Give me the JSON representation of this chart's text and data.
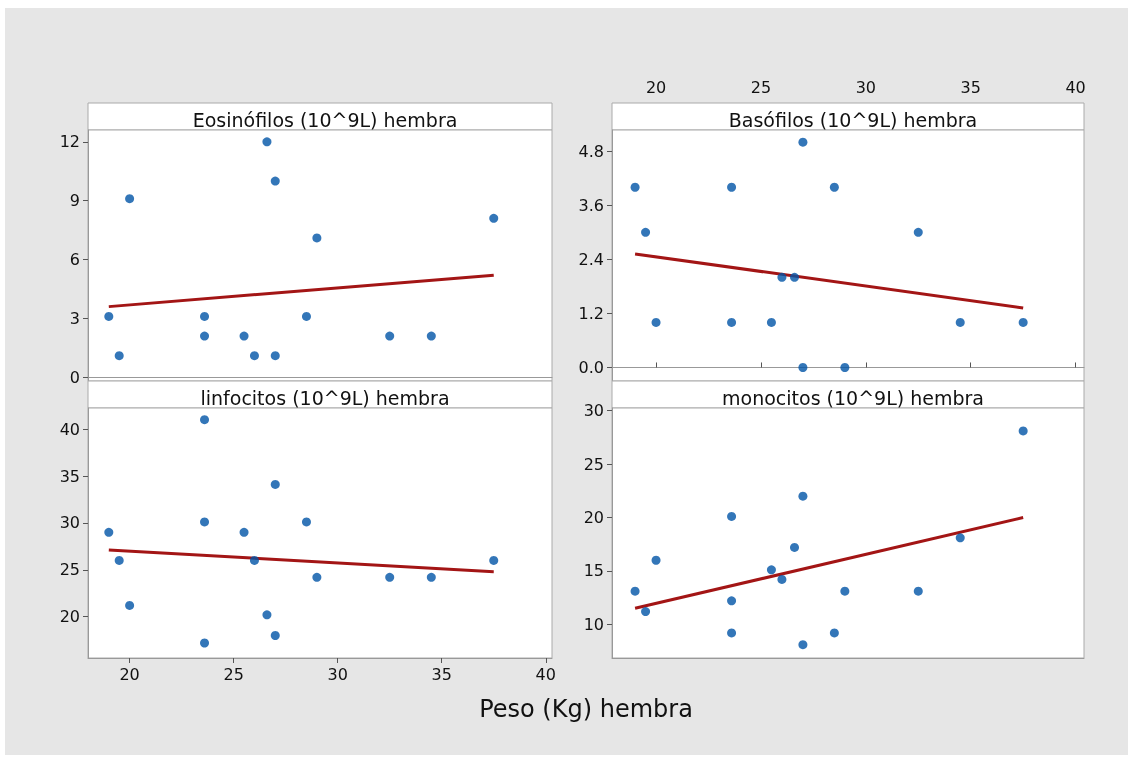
{
  "chart_data": [
    {
      "type": "scatter",
      "title": "Eosinófilos (10^9L) hembra",
      "xlim": [
        18,
        40.3
      ],
      "ylim": [
        -0.19,
        12.6
      ],
      "yticks": [
        0,
        3,
        6,
        9,
        12
      ],
      "tick_labels": "y",
      "marker": "circle",
      "series": [
        {
          "color": "#0054a6",
          "x": [
            19,
            19.5,
            20,
            23.6,
            23.6,
            25.5,
            26,
            26.6,
            27,
            27,
            28.5,
            29,
            32.5,
            34.5,
            37.5
          ],
          "values": [
            3.1,
            1.1,
            9.1,
            3.1,
            2.1,
            2.1,
            1.1,
            12,
            10,
            1.1,
            3.1,
            7.1,
            2.1,
            2.1,
            8.1
          ]
        },
        {
          "type": "line",
          "marker": "none",
          "color": "#a31515",
          "x": [
            19,
            37.5
          ],
          "values": [
            3.6,
            5.2
          ]
        }
      ]
    },
    {
      "type": "scatter",
      "title": "Basófilos (10^9L) hembra",
      "xlim": [
        17.9,
        40.4
      ],
      "xticks": [
        20,
        25,
        30,
        35,
        40
      ],
      "ylim": [
        -0.3,
        5.27
      ],
      "yticks": [
        {
          "value": 0,
          "label": "0.0"
        },
        1.2,
        2.4,
        3.6,
        4.8
      ],
      "marker": "circle",
      "series": [
        {
          "color": "#0054a6",
          "x": [
            19,
            19.5,
            20,
            23.6,
            23.6,
            25.5,
            26,
            26.6,
            27,
            27,
            28.5,
            29,
            32.5,
            34.5,
            37.5
          ],
          "values": [
            4,
            3,
            1,
            4,
            1,
            1,
            2,
            2,
            5,
            0,
            4,
            0,
            3,
            1,
            1
          ]
        },
        {
          "type": "line",
          "marker": "none",
          "color": "#a31515",
          "x": [
            19,
            37.5
          ],
          "values": [
            2.52,
            1.32
          ]
        }
      ]
    },
    {
      "type": "scatter",
      "title": "linfocitos (10^9L) hembra",
      "xlabel": "Peso (Kg) hembra",
      "xlim": [
        18,
        40.3
      ],
      "xticks": [
        20,
        25,
        30,
        35,
        40
      ],
      "ylim": [
        15.6,
        42.25
      ],
      "yticks": [
        20,
        25,
        30,
        35,
        40
      ],
      "marker": "circle",
      "series": [
        {
          "color": "#0054a6",
          "x": [
            19,
            19.5,
            20,
            23.6,
            23.6,
            23.6,
            25.5,
            26,
            26.6,
            27,
            27,
            28.5,
            29,
            32.5,
            34.5,
            37.5
          ],
          "values": [
            29,
            26,
            21.2,
            41,
            30.1,
            17.2,
            29,
            26,
            20.2,
            34.1,
            18,
            30.1,
            24.2,
            24.2,
            24.2,
            26
          ]
        },
        {
          "type": "line",
          "marker": "none",
          "color": "#a31515",
          "x": [
            19,
            37.5
          ],
          "values": [
            27.1,
            24.8
          ]
        }
      ]
    },
    {
      "type": "scatter",
      "title": "monocitos (10^9L) hembra",
      "xlim": [
        17.9,
        40.4
      ],
      "ylim": [
        6.85,
        30.25
      ],
      "yticks": [
        10,
        15,
        20,
        25,
        30
      ],
      "tick_labels": "y",
      "marker": "circle",
      "series": [
        {
          "color": "#0054a6",
          "x": [
            19,
            19.5,
            20,
            23.6,
            23.6,
            23.6,
            25.5,
            26,
            26.6,
            27,
            27,
            28.5,
            29,
            32.5,
            34.5,
            37.5
          ],
          "values": [
            13.1,
            11.2,
            16,
            20.1,
            12.2,
            9.2,
            15.1,
            14.2,
            17.2,
            22,
            8.1,
            9.2,
            13.1,
            13.1,
            18.1,
            28.1
          ]
        },
        {
          "type": "line",
          "marker": "none",
          "color": "#a31515",
          "x": [
            19,
            37.5
          ],
          "values": [
            11.5,
            20
          ]
        }
      ]
    }
  ]
}
